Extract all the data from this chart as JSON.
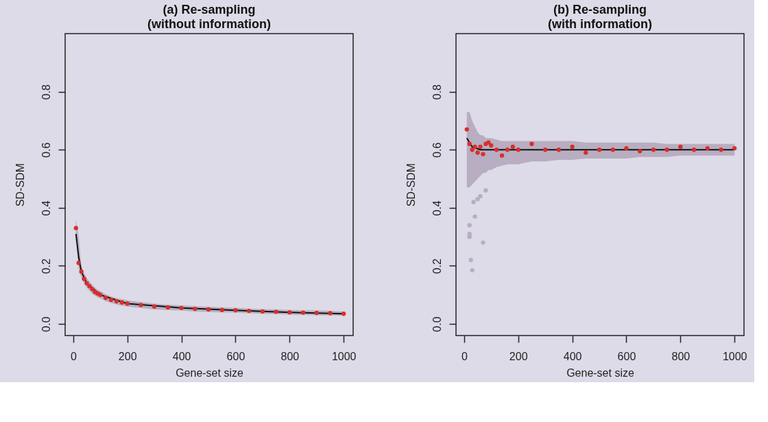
{
  "chart_data": [
    {
      "type": "scatter",
      "title": "(a) Re-sampling\n(without information)",
      "xlabel": "Gene-set size",
      "ylabel": "SD-SDM",
      "xlim": [
        -30,
        1035
      ],
      "ylim": [
        -0.04,
        1.0
      ],
      "xticks": [
        0,
        200,
        400,
        600,
        800,
        1000
      ],
      "yticks": [
        {
          "value": 0,
          "label": "0.0"
        },
        0.2,
        0.4,
        0.6,
        0.8
      ],
      "grid": false,
      "marker": "circle",
      "series": [
        {
          "color": "#d6302a",
          "x": [
            10,
            20,
            30,
            40,
            50,
            60,
            70,
            80,
            90,
            100,
            120,
            140,
            160,
            180,
            200,
            250,
            300,
            350,
            400,
            450,
            500,
            550,
            600,
            650,
            700,
            750,
            800,
            850,
            900,
            950,
            1000
          ],
          "values": [
            0.33,
            0.21,
            0.18,
            0.155,
            0.14,
            0.13,
            0.12,
            0.11,
            0.105,
            0.1,
            0.09,
            0.083,
            0.078,
            0.074,
            0.07,
            0.065,
            0.06,
            0.057,
            0.055,
            0.052,
            0.05,
            0.048,
            0.047,
            0.045,
            0.043,
            0.042,
            0.04,
            0.039,
            0.038,
            0.037,
            0.035
          ],
          "lower": [
            0.3,
            0.19,
            0.16,
            0.14,
            0.125,
            0.115,
            0.105,
            0.097,
            0.092,
            0.088,
            0.078,
            0.072,
            0.067,
            0.063,
            0.06,
            0.055,
            0.05,
            0.048,
            0.046,
            0.043,
            0.041,
            0.04,
            0.039,
            0.037,
            0.035,
            0.034,
            0.032,
            0.031,
            0.03,
            0.03,
            0.028
          ],
          "upper": [
            0.36,
            0.3,
            0.2,
            0.175,
            0.158,
            0.146,
            0.135,
            0.125,
            0.118,
            0.113,
            0.102,
            0.094,
            0.089,
            0.085,
            0.081,
            0.075,
            0.07,
            0.066,
            0.064,
            0.061,
            0.059,
            0.057,
            0.055,
            0.053,
            0.051,
            0.05,
            0.048,
            0.047,
            0.046,
            0.045,
            0.043
          ]
        },
        {
          "type": "line",
          "marker": "none",
          "color": "#111111",
          "x": [
            10,
            20,
            30,
            50,
            100,
            200,
            400,
            600,
            800,
            1000
          ],
          "values": [
            0.31,
            0.23,
            0.18,
            0.14,
            0.1,
            0.07,
            0.055,
            0.047,
            0.04,
            0.035
          ]
        }
      ]
    },
    {
      "type": "scatter",
      "title": "(b) Re-sampling\n(with information)",
      "xlabel": "Gene-set size",
      "ylabel": "SD-SDM",
      "xlim": [
        -30,
        1035
      ],
      "ylim": [
        -0.04,
        1.0
      ],
      "xticks": [
        0,
        200,
        400,
        600,
        800,
        1000
      ],
      "yticks": [
        {
          "value": 0,
          "label": "0.0"
        },
        0.2,
        0.4,
        0.6,
        0.8
      ],
      "grid": false,
      "marker": "circle",
      "series": [
        {
          "color": "#b9adc2",
          "x": [
            20,
            20,
            20,
            25,
            30,
            35,
            40,
            50,
            60,
            70,
            80
          ],
          "values": [
            0.34,
            0.31,
            0.3,
            0.22,
            0.185,
            0.42,
            0.37,
            0.43,
            0.44,
            0.28,
            0.46
          ]
        },
        {
          "color": "#d6302a",
          "x": [
            10,
            20,
            30,
            40,
            50,
            60,
            70,
            80,
            90,
            100,
            120,
            140,
            160,
            180,
            200,
            250,
            300,
            350,
            400,
            450,
            500,
            550,
            600,
            650,
            700,
            750,
            800,
            850,
            900,
            950,
            1000
          ],
          "values": [
            0.67,
            0.62,
            0.6,
            0.61,
            0.59,
            0.61,
            0.585,
            0.62,
            0.625,
            0.615,
            0.6,
            0.58,
            0.6,
            0.61,
            0.6,
            0.62,
            0.6,
            0.6,
            0.61,
            0.59,
            0.6,
            0.6,
            0.605,
            0.595,
            0.6,
            0.6,
            0.61,
            0.6,
            0.605,
            0.6,
            0.605
          ],
          "lower": [
            0.47,
            0.47,
            0.48,
            0.49,
            0.5,
            0.51,
            0.52,
            0.52,
            0.53,
            0.53,
            0.54,
            0.545,
            0.55,
            0.55,
            0.55,
            0.56,
            0.56,
            0.565,
            0.565,
            0.57,
            0.57,
            0.57,
            0.57,
            0.575,
            0.575,
            0.575,
            0.58,
            0.58,
            0.58,
            0.58,
            0.58
          ],
          "upper": [
            0.73,
            0.73,
            0.7,
            0.68,
            0.66,
            0.65,
            0.65,
            0.64,
            0.64,
            0.64,
            0.635,
            0.63,
            0.63,
            0.63,
            0.63,
            0.63,
            0.63,
            0.63,
            0.63,
            0.625,
            0.625,
            0.625,
            0.625,
            0.625,
            0.625,
            0.62,
            0.62,
            0.62,
            0.62,
            0.62,
            0.62
          ]
        },
        {
          "type": "line",
          "marker": "none",
          "color": "#111111",
          "x": [
            10,
            30,
            60,
            100,
            200,
            1000
          ],
          "values": [
            0.64,
            0.61,
            0.6,
            0.6,
            0.6,
            0.6
          ]
        }
      ]
    }
  ]
}
